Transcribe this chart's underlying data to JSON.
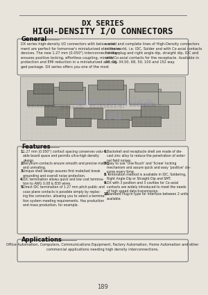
{
  "title_line1": "DX SERIES",
  "title_line2": "HIGH-DENSITY I/O CONNECTORS",
  "page_bg": "#e8e4dc",
  "box_bg": "#ede9e0",
  "img_bg": "#d0ccc4",
  "section_general": "General",
  "general_text_left": "DX series high-density I/O connectors with below cost\nment are perfect for tomorrow's miniaturized electronics\ndevices. The new 1.27 mm (0.050\") interconnect design\nensures positive locking, effortless coupling, minimal\nprotection and EMI reduction in a miniaturized and rug-\nged package. DX series offers you one of the most",
  "general_text_right": "varied and complete lines of High-Density connectors\nin the world, i.e. IDC, Solder and with Co-axial contacts\nfor the plug and right angle dip, straight dip, IDC and\nwith Co-axial contacts for the receptacle. Available in\n20, 26, 34,50, 68, 50, 100 and 152 way.",
  "section_features": "Features",
  "features_left": [
    "1.27 mm (0.050\") contact spacing conserves valu-\nable board space and permits ultra-high density\ndesign.",
    "Beryllium-contacts ensure smooth and precise mating\nand unmating.",
    "Unique shell design assures first mate/last break\ngrounding and overall noise protection.",
    "IDC termination allows quick and low cost termina-\ntion to AWG 0.08 & B30 wires.",
    "Direct IDC termination of 1.27 mm pitch public and\ncoax plane contacts is possible simply by replac-\ning the connector, allowing you to select a termina-\ntion system meeting requirements. Has production\nand mass production, for example."
  ],
  "features_right": [
    "Backshell and receptacle shell are made of die-\ncast zinc alloy to reduce the penetration of exter-\nnal field noises.",
    "Easy to use 'One-Touch' and 'Screw' locking\nmechanism and assure quick and easy 'positive' clo-\nsures every time.",
    "Termination method is available in IDC, Soldering,\nRight Angle Dip or Straight Dip and SMT.",
    "DX with 3 position and 3 cavities for Co-axial\ncontacts are widely introduced to meet the needs\nof high speed data transmission.",
    "Standard Plug-in type for interface between 2 units\navailable."
  ],
  "section_applications": "Applications",
  "applications_text": "Office Automation, Computers, Communications Equipment, Factory Automation, Home Automation and other\ncommercial applications needing high density interconnections.",
  "page_number": "189",
  "watermark": "electronica\nru"
}
